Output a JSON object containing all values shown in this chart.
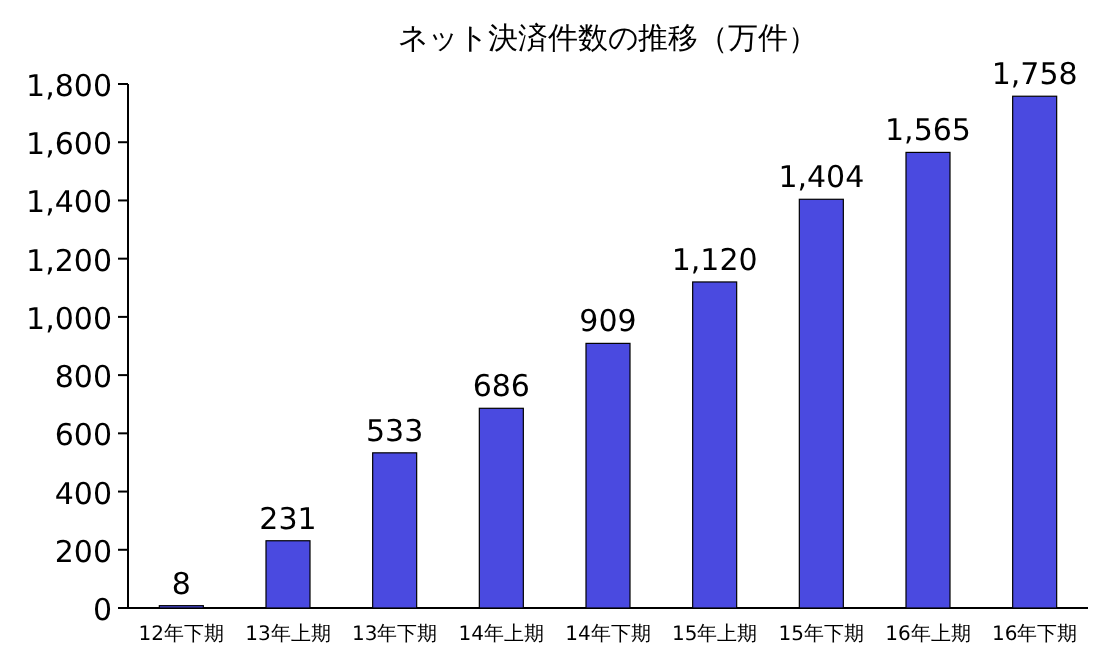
{
  "chart_data": {
    "type": "bar",
    "title": "ネット決済件数の推移（万件）",
    "categories": [
      "12年下期",
      "13年上期",
      "13年下期",
      "14年上期",
      "14年下期",
      "15年上期",
      "15年下期",
      "16年上期",
      "16年下期"
    ],
    "values": [
      8,
      231,
      533,
      686,
      909,
      1120,
      1404,
      1565,
      1758
    ],
    "value_labels": [
      "8",
      "231",
      "533",
      "686",
      "909",
      "1,120",
      "1,404",
      "1,565",
      "1,758"
    ],
    "color": "#4a4ae0",
    "ylim": [
      0,
      1800
    ],
    "yticks": [
      0,
      200,
      400,
      600,
      800,
      {
        "value": 1000,
        "label": "1,000"
      },
      {
        "value": 1200,
        "label": "1,200"
      },
      {
        "value": 1400,
        "label": "1,400"
      },
      {
        "value": 1600,
        "label": "1,600"
      },
      {
        "value": 1800,
        "label": "1,800"
      }
    ],
    "grid": false
  }
}
